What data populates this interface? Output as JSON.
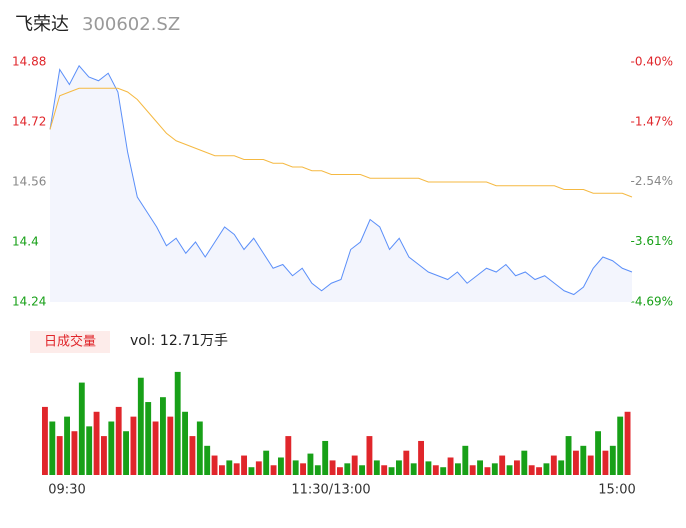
{
  "header": {
    "name": "飞荣达",
    "code": "300602.SZ"
  },
  "chart_data": [
    {
      "type": "line",
      "xlim": [
        0,
        240
      ],
      "ylim": [
        14.24,
        14.88
      ],
      "yticks": [
        14.88,
        14.72,
        14.56,
        14.4,
        14.24
      ],
      "ytick_colors": [
        "#e0262b",
        "#e0262b",
        "#888888",
        "#18a018",
        "#18a018"
      ],
      "y2lim": [
        -4.69,
        -0.4
      ],
      "y2ticks": [
        {
          "value": -0.4,
          "label": "-0.40%"
        },
        {
          "value": -1.47,
          "label": "-1.47%"
        },
        {
          "value": -2.54,
          "label": "-2.54%"
        },
        {
          "value": -3.61,
          "label": "-3.61%"
        },
        {
          "value": -4.69,
          "label": "-4.69%"
        }
      ],
      "y2tick_colors": [
        "#e0262b",
        "#e0262b",
        "#888888",
        "#18a018",
        "#18a018"
      ],
      "series": [
        {
          "color": "#5b8ff9",
          "fill": "#f3f5fd",
          "values": [
            14.7,
            14.86,
            14.82,
            14.87,
            14.84,
            14.83,
            14.85,
            14.8,
            14.64,
            14.52,
            14.48,
            14.44,
            14.39,
            14.41,
            14.37,
            14.4,
            14.36,
            14.4,
            14.44,
            14.42,
            14.38,
            14.41,
            14.37,
            14.33,
            14.34,
            14.31,
            14.33,
            14.29,
            14.27,
            14.29,
            14.3,
            14.38,
            14.4,
            14.46,
            14.44,
            14.38,
            14.41,
            14.36,
            14.34,
            14.32,
            14.31,
            14.3,
            14.32,
            14.29,
            14.31,
            14.33,
            14.32,
            14.34,
            14.31,
            14.32,
            14.3,
            14.31,
            14.29,
            14.27,
            14.26,
            14.28,
            14.33,
            14.36,
            14.35,
            14.33,
            14.32
          ]
        },
        {
          "color": "#f5b942",
          "values": [
            14.7,
            14.79,
            14.8,
            14.81,
            14.81,
            14.81,
            14.81,
            14.81,
            14.8,
            14.78,
            14.75,
            14.72,
            14.69,
            14.67,
            14.66,
            14.65,
            14.64,
            14.63,
            14.63,
            14.63,
            14.62,
            14.62,
            14.62,
            14.61,
            14.61,
            14.6,
            14.6,
            14.59,
            14.59,
            14.58,
            14.58,
            14.58,
            14.58,
            14.57,
            14.57,
            14.57,
            14.57,
            14.57,
            14.57,
            14.56,
            14.56,
            14.56,
            14.56,
            14.56,
            14.56,
            14.56,
            14.55,
            14.55,
            14.55,
            14.55,
            14.55,
            14.55,
            14.55,
            14.54,
            14.54,
            14.54,
            14.53,
            14.53,
            14.53,
            14.53,
            14.52
          ]
        }
      ]
    },
    {
      "type": "bar",
      "legend": "日成交量",
      "label": "vol: 12.71万手",
      "xlim": [
        0,
        240
      ],
      "ylim": [
        0,
        110
      ],
      "xticks": [
        {
          "value": 0,
          "label": "09:30"
        },
        {
          "value": 120,
          "label": "11:30/13:00"
        },
        {
          "value": 240,
          "label": "15:00"
        }
      ],
      "values": [
        70,
        55,
        40,
        60,
        45,
        95,
        50,
        65,
        40,
        55,
        70,
        45,
        60,
        100,
        75,
        55,
        80,
        60,
        106,
        65,
        40,
        55,
        30,
        20,
        10,
        15,
        12,
        20,
        8,
        14,
        25,
        10,
        18,
        40,
        15,
        12,
        22,
        10,
        35,
        15,
        8,
        12,
        20,
        10,
        40,
        15,
        10,
        8,
        15,
        25,
        12,
        35,
        14,
        10,
        8,
        18,
        12,
        30,
        10,
        15,
        8,
        12,
        20,
        10,
        15,
        25,
        10,
        8,
        12,
        20,
        15,
        40,
        25,
        30,
        20,
        45,
        25,
        30,
        60,
        65
      ],
      "colors": [
        "#e0262b",
        "#18a018",
        "#e0262b",
        "#18a018",
        "#e0262b",
        "#18a018",
        "#18a018",
        "#e0262b",
        "#e0262b",
        "#18a018",
        "#e0262b",
        "#18a018",
        "#e0262b",
        "#18a018",
        "#18a018",
        "#e0262b",
        "#18a018",
        "#e0262b",
        "#18a018",
        "#18a018",
        "#e0262b",
        "#18a018",
        "#18a018",
        "#e0262b",
        "#e0262b",
        "#18a018",
        "#e0262b",
        "#e0262b",
        "#18a018",
        "#e0262b",
        "#18a018",
        "#e0262b",
        "#18a018",
        "#e0262b",
        "#18a018",
        "#e0262b",
        "#18a018",
        "#18a018",
        "#18a018",
        "#e0262b",
        "#e0262b",
        "#18a018",
        "#e0262b",
        "#18a018",
        "#e0262b",
        "#18a018",
        "#e0262b",
        "#18a018",
        "#18a018",
        "#e0262b",
        "#18a018",
        "#e0262b",
        "#18a018",
        "#e0262b",
        "#18a018",
        "#e0262b",
        "#18a018",
        "#18a018",
        "#e0262b",
        "#18a018",
        "#e0262b",
        "#18a018",
        "#e0262b",
        "#18a018",
        "#e0262b",
        "#18a018",
        "#e0262b",
        "#e0262b",
        "#18a018",
        "#e0262b",
        "#18a018",
        "#18a018",
        "#e0262b",
        "#18a018",
        "#e0262b",
        "#18a018",
        "#e0262b",
        "#18a018",
        "#18a018",
        "#e0262b"
      ]
    }
  ]
}
